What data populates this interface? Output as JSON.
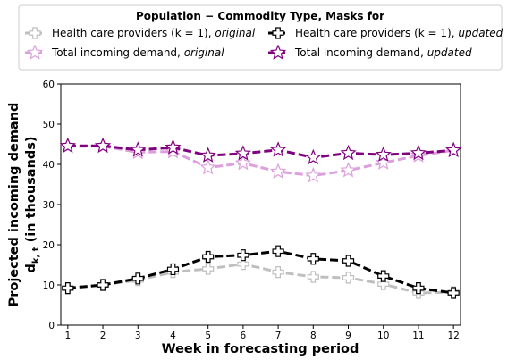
{
  "chart_data": {
    "type": "line",
    "legend_title": "Population − Commodity Type, Masks for",
    "xlabel": "Week in forecasting period",
    "ylabel_line1": "Projected incoming demand",
    "ylabel_line2": "d",
    "ylabel_sub": "k, t",
    "ylabel_suffix": " (in thousands)",
    "x": [
      1,
      2,
      3,
      4,
      5,
      6,
      7,
      8,
      9,
      10,
      11,
      12
    ],
    "xlim": [
      0.8,
      12.2
    ],
    "ylim": [
      0,
      60
    ],
    "yticks": [
      0,
      10,
      20,
      30,
      40,
      50,
      60
    ],
    "grid": false,
    "legend_position": "top, outside plot",
    "series": [
      {
        "name_prefix": "Health care providers (k = 1), ",
        "name_style": "original",
        "color": "#bfbfbf",
        "marker": "plus",
        "values": [
          9.2,
          10.0,
          11.2,
          13.2,
          14.0,
          15.2,
          13.2,
          12.0,
          11.8,
          10.2,
          8.0,
          8.2
        ]
      },
      {
        "name_prefix": "Health care providers (k = 1), ",
        "name_style": "updated",
        "color": "#000000",
        "marker": "plus",
        "values": [
          9.2,
          10.0,
          11.6,
          13.9,
          17.0,
          17.4,
          18.4,
          16.5,
          16.0,
          12.2,
          9.2,
          8.0
        ]
      },
      {
        "name_prefix": "Total incoming demand, ",
        "name_style": "original",
        "color": "#dda0dd",
        "marker": "star",
        "values": [
          44.5,
          44.5,
          43.0,
          43.2,
          39.2,
          40.3,
          38.2,
          37.2,
          38.5,
          40.4,
          42.2,
          43.5
        ]
      },
      {
        "name_prefix": "Total incoming demand, ",
        "name_style": "updated",
        "color": "#800080",
        "marker": "star",
        "values": [
          44.6,
          44.6,
          43.6,
          44.2,
          42.2,
          42.7,
          43.6,
          41.7,
          42.8,
          42.4,
          42.8,
          43.5
        ]
      }
    ]
  }
}
